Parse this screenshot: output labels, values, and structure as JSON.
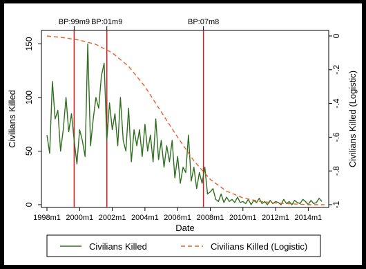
{
  "chart_data": {
    "type": "line",
    "xlabel": "Date",
    "ylabel_left": "Civilians Killed",
    "ylabel_right": "Civilians Killed (Logistic)",
    "x_ticks": [
      "1998m1",
      "2000m1",
      "2002m1",
      "2004m1",
      "2006m1",
      "2008m1",
      "2010m1",
      "2012m1",
      "2014m1"
    ],
    "y_left_ticks": [
      "0",
      "50",
      "100",
      "150"
    ],
    "y_right_ticks": [
      "0",
      "-.2",
      "-.4",
      "-.6",
      "-.8",
      "-1"
    ],
    "xlim": [
      "1998m1",
      "2015m1"
    ],
    "ylim_left": [
      0,
      160
    ],
    "ylim_right": [
      -1,
      0
    ],
    "grid": false,
    "legend_position": "bottom",
    "breakpoints": [
      {
        "label": "BP:99m9",
        "date": "1999m9"
      },
      {
        "label": "BP:01m9",
        "date": "2001m9"
      },
      {
        "label": "BP:07m8",
        "date": "2007m8"
      }
    ],
    "series": [
      {
        "name": "Civilians Killed",
        "axis": "left",
        "color": "#2e6e1e",
        "style": "solid",
        "x": [
          "1998m1",
          "1998m3",
          "1998m5",
          "1998m7",
          "1998m9",
          "1998m11",
          "1999m1",
          "1999m3",
          "1999m5",
          "1999m7",
          "1999m9",
          "1999m11",
          "2000m1",
          "2000m3",
          "2000m5",
          "2000m7",
          "2000m9",
          "2000m11",
          "2001m1",
          "2001m3",
          "2001m5",
          "2001m7",
          "2001m9",
          "2001m11",
          "2002m1",
          "2002m3",
          "2002m5",
          "2002m7",
          "2002m9",
          "2002m11",
          "2003m1",
          "2003m3",
          "2003m5",
          "2003m7",
          "2003m9",
          "2003m11",
          "2004m1",
          "2004m3",
          "2004m5",
          "2004m7",
          "2004m9",
          "2004m11",
          "2005m1",
          "2005m3",
          "2005m5",
          "2005m7",
          "2005m9",
          "2005m11",
          "2006m1",
          "2006m3",
          "2006m5",
          "2006m7",
          "2006m9",
          "2006m11",
          "2007m1",
          "2007m3",
          "2007m5",
          "2007m7",
          "2007m9",
          "2007m11",
          "2008m1",
          "2008m3",
          "2008m5",
          "2008m7",
          "2008m9",
          "2008m11",
          "2009m1",
          "2009m3",
          "2009m5",
          "2009m7",
          "2009m9",
          "2009m11",
          "2010m1",
          "2010m3",
          "2010m5",
          "2010m7",
          "2010m9",
          "2010m11",
          "2011m1",
          "2011m3",
          "2011m5",
          "2011m7",
          "2011m9",
          "2011m11",
          "2012m1",
          "2012m3",
          "2012m5",
          "2012m7",
          "2012m9",
          "2012m11",
          "2013m1",
          "2013m3",
          "2013m5",
          "2013m7",
          "2013m9",
          "2013m11",
          "2014m1",
          "2014m3",
          "2014m5",
          "2014m7",
          "2014m9",
          "2014m11"
        ],
        "y": [
          65,
          48,
          115,
          80,
          88,
          50,
          70,
          100,
          68,
          85,
          60,
          38,
          70,
          60,
          45,
          150,
          55,
          80,
          100,
          90,
          120,
          132,
          60,
          95,
          70,
          85,
          55,
          100,
          60,
          50,
          90,
          40,
          70,
          55,
          70,
          45,
          75,
          50,
          65,
          40,
          80,
          42,
          60,
          35,
          55,
          40,
          60,
          25,
          45,
          20,
          35,
          30,
          65,
          22,
          35,
          15,
          30,
          20,
          35,
          10,
          12,
          15,
          5,
          3,
          10,
          2,
          7,
          3,
          5,
          2,
          7,
          2,
          3,
          1,
          5,
          0,
          4,
          2,
          6,
          1,
          3,
          0,
          4,
          1,
          3,
          2,
          0,
          5,
          1,
          3,
          0,
          4,
          2,
          1,
          5,
          3,
          0,
          4,
          1,
          2,
          6,
          3
        ]
      },
      {
        "name": "Civilians Killed (Logistic)",
        "axis": "right",
        "color": "#e8622a",
        "style": "dashed",
        "x": [
          "1998m1",
          "1999m1",
          "2000m1",
          "2001m1",
          "2002m1",
          "2003m1",
          "2004m1",
          "2005m1",
          "2006m1",
          "2007m1",
          "2008m1",
          "2009m1",
          "2010m1",
          "2011m1",
          "2012m1",
          "2013m1",
          "2014m1",
          "2015m1"
        ],
        "y": [
          0,
          -0.01,
          -0.025,
          -0.05,
          -0.1,
          -0.18,
          -0.3,
          -0.45,
          -0.6,
          -0.74,
          -0.85,
          -0.92,
          -0.96,
          -0.98,
          -0.99,
          -0.995,
          -1,
          -1
        ]
      }
    ]
  }
}
